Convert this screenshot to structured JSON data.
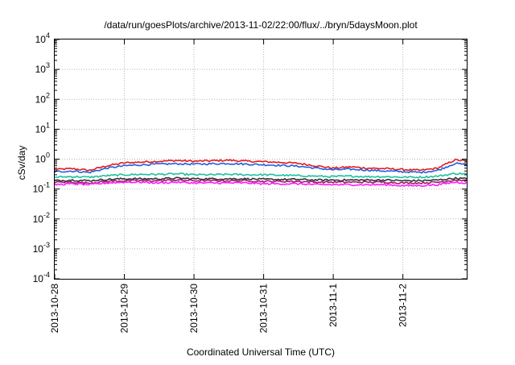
{
  "chart_data": {
    "type": "line",
    "title": "/data/run/goesPlots/archive/2013-11-02/22:00/flux/../bryn/5daysMoon.plot",
    "xlabel": "Coordinated Universal Time (UTC)",
    "ylabel": "cSv/day",
    "yscale": "log",
    "ylim": [
      0.0001,
      10000
    ],
    "xlim": [
      "2013-10-28",
      "2013-11-02 22:00"
    ],
    "grid": true,
    "y_ticks": [
      {
        "base": "10",
        "exp": "-4",
        "value": 0.0001
      },
      {
        "base": "10",
        "exp": "-3",
        "value": 0.001
      },
      {
        "base": "10",
        "exp": "-2",
        "value": 0.01
      },
      {
        "base": "10",
        "exp": "-1",
        "value": 0.1
      },
      {
        "base": "10",
        "exp": "0",
        "value": 1
      },
      {
        "base": "10",
        "exp": "1",
        "value": 10
      },
      {
        "base": "10",
        "exp": "2",
        "value": 100
      },
      {
        "base": "10",
        "exp": "3",
        "value": 1000
      },
      {
        "base": "10",
        "exp": "4",
        "value": 10000
      }
    ],
    "x_ticks": [
      "2013-10-28",
      "2013-10-29",
      "2013-10-30",
      "2013-10-31",
      "2013-11-1",
      "2013-11-2"
    ],
    "series": [
      {
        "color": "#e41a1c",
        "x": [
          "2013-10-28 00:00",
          "2013-10-28 06:00",
          "2013-10-28 12:00",
          "2013-10-28 18:00",
          "2013-10-29 00:00",
          "2013-10-29 06:00",
          "2013-10-29 12:00",
          "2013-10-29 18:00",
          "2013-10-30 00:00",
          "2013-10-30 06:00",
          "2013-10-30 12:00",
          "2013-10-30 18:00",
          "2013-10-31 00:00",
          "2013-10-31 06:00",
          "2013-10-31 12:00",
          "2013-10-31 18:00",
          "2013-11-01 00:00",
          "2013-11-01 06:00",
          "2013-11-01 12:00",
          "2013-11-01 18:00",
          "2013-11-02 00:00",
          "2013-11-02 06:00",
          "2013-11-02 12:00",
          "2013-11-02 18:00",
          "2013-11-02 22:00"
        ],
        "y": [
          0.45,
          0.48,
          0.42,
          0.6,
          0.75,
          0.8,
          0.85,
          0.9,
          0.85,
          0.88,
          0.92,
          0.85,
          0.82,
          0.78,
          0.72,
          0.6,
          0.5,
          0.55,
          0.5,
          0.48,
          0.45,
          0.42,
          0.5,
          0.95,
          0.85
        ]
      },
      {
        "color": "#1f5fe0",
        "x": [
          "2013-10-28 00:00",
          "2013-10-28 06:00",
          "2013-10-28 12:00",
          "2013-10-28 18:00",
          "2013-10-29 00:00",
          "2013-10-29 06:00",
          "2013-10-29 12:00",
          "2013-10-29 18:00",
          "2013-10-30 00:00",
          "2013-10-30 06:00",
          "2013-10-30 12:00",
          "2013-10-30 18:00",
          "2013-10-31 00:00",
          "2013-10-31 06:00",
          "2013-10-31 12:00",
          "2013-10-31 18:00",
          "2013-11-01 00:00",
          "2013-11-01 06:00",
          "2013-11-01 12:00",
          "2013-11-01 18:00",
          "2013-11-02 00:00",
          "2013-11-02 06:00",
          "2013-11-02 12:00",
          "2013-11-02 18:00",
          "2013-11-02 22:00"
        ],
        "y": [
          0.38,
          0.4,
          0.36,
          0.5,
          0.6,
          0.65,
          0.68,
          0.7,
          0.68,
          0.7,
          0.72,
          0.68,
          0.65,
          0.62,
          0.58,
          0.5,
          0.44,
          0.46,
          0.43,
          0.4,
          0.38,
          0.36,
          0.42,
          0.72,
          0.65
        ]
      },
      {
        "color": "#1fbf9f",
        "x": [
          "2013-10-28 00:00",
          "2013-10-28 06:00",
          "2013-10-28 12:00",
          "2013-10-28 18:00",
          "2013-10-29 00:00",
          "2013-10-29 06:00",
          "2013-10-29 12:00",
          "2013-10-29 18:00",
          "2013-10-30 00:00",
          "2013-10-30 06:00",
          "2013-10-30 12:00",
          "2013-10-30 18:00",
          "2013-10-31 00:00",
          "2013-10-31 06:00",
          "2013-10-31 12:00",
          "2013-10-31 18:00",
          "2013-11-01 00:00",
          "2013-11-01 06:00",
          "2013-11-01 12:00",
          "2013-11-01 18:00",
          "2013-11-02 00:00",
          "2013-11-02 06:00",
          "2013-11-02 12:00",
          "2013-11-02 18:00",
          "2013-11-02 22:00"
        ],
        "y": [
          0.25,
          0.26,
          0.25,
          0.28,
          0.3,
          0.31,
          0.31,
          0.32,
          0.3,
          0.3,
          0.31,
          0.3,
          0.3,
          0.29,
          0.28,
          0.27,
          0.26,
          0.27,
          0.26,
          0.26,
          0.25,
          0.25,
          0.27,
          0.33,
          0.32
        ]
      },
      {
        "color": "#333333",
        "x": [
          "2013-10-28 00:00",
          "2013-10-28 06:00",
          "2013-10-28 12:00",
          "2013-10-28 18:00",
          "2013-10-29 00:00",
          "2013-10-29 06:00",
          "2013-10-29 12:00",
          "2013-10-29 18:00",
          "2013-10-30 00:00",
          "2013-10-30 06:00",
          "2013-10-30 12:00",
          "2013-10-30 18:00",
          "2013-10-31 00:00",
          "2013-10-31 06:00",
          "2013-10-31 12:00",
          "2013-10-31 18:00",
          "2013-11-01 00:00",
          "2013-11-01 06:00",
          "2013-11-01 12:00",
          "2013-11-01 18:00",
          "2013-11-02 00:00",
          "2013-11-02 06:00",
          "2013-11-02 12:00",
          "2013-11-02 18:00",
          "2013-11-02 22:00"
        ],
        "y": [
          0.19,
          0.2,
          0.19,
          0.21,
          0.22,
          0.22,
          0.22,
          0.23,
          0.22,
          0.22,
          0.22,
          0.22,
          0.21,
          0.21,
          0.21,
          0.2,
          0.2,
          0.2,
          0.2,
          0.2,
          0.19,
          0.19,
          0.2,
          0.23,
          0.22
        ]
      },
      {
        "color": "#a01a6a",
        "x": [
          "2013-10-28 00:00",
          "2013-10-28 06:00",
          "2013-10-28 12:00",
          "2013-10-28 18:00",
          "2013-10-29 00:00",
          "2013-10-29 06:00",
          "2013-10-29 12:00",
          "2013-10-29 18:00",
          "2013-10-30 00:00",
          "2013-10-30 06:00",
          "2013-10-30 12:00",
          "2013-10-30 18:00",
          "2013-10-31 00:00",
          "2013-10-31 06:00",
          "2013-10-31 12:00",
          "2013-10-31 18:00",
          "2013-11-01 00:00",
          "2013-11-01 06:00",
          "2013-11-01 12:00",
          "2013-11-01 18:00",
          "2013-11-02 00:00",
          "2013-11-02 06:00",
          "2013-11-02 12:00",
          "2013-11-02 18:00",
          "2013-11-02 22:00"
        ],
        "y": [
          0.17,
          0.17,
          0.16,
          0.18,
          0.19,
          0.19,
          0.19,
          0.2,
          0.19,
          0.19,
          0.19,
          0.19,
          0.18,
          0.18,
          0.18,
          0.17,
          0.17,
          0.17,
          0.17,
          0.17,
          0.16,
          0.16,
          0.17,
          0.2,
          0.19
        ]
      },
      {
        "color": "#ff1aff",
        "x": [
          "2013-10-28 00:00",
          "2013-10-28 06:00",
          "2013-10-28 12:00",
          "2013-10-28 18:00",
          "2013-10-29 00:00",
          "2013-10-29 06:00",
          "2013-10-29 12:00",
          "2013-10-29 18:00",
          "2013-10-30 00:00",
          "2013-10-30 06:00",
          "2013-10-30 12:00",
          "2013-10-30 18:00",
          "2013-10-31 00:00",
          "2013-10-31 06:00",
          "2013-10-31 12:00",
          "2013-10-31 18:00",
          "2013-11-01 00:00",
          "2013-11-01 06:00",
          "2013-11-01 12:00",
          "2013-11-01 18:00",
          "2013-11-02 00:00",
          "2013-11-02 06:00",
          "2013-11-02 12:00",
          "2013-11-02 18:00",
          "2013-11-02 22:00"
        ],
        "y": [
          0.14,
          0.15,
          0.14,
          0.16,
          0.17,
          0.17,
          0.16,
          0.17,
          0.16,
          0.16,
          0.16,
          0.16,
          0.15,
          0.15,
          0.15,
          0.14,
          0.14,
          0.14,
          0.14,
          0.14,
          0.13,
          0.13,
          0.14,
          0.17,
          0.16
        ]
      }
    ]
  }
}
